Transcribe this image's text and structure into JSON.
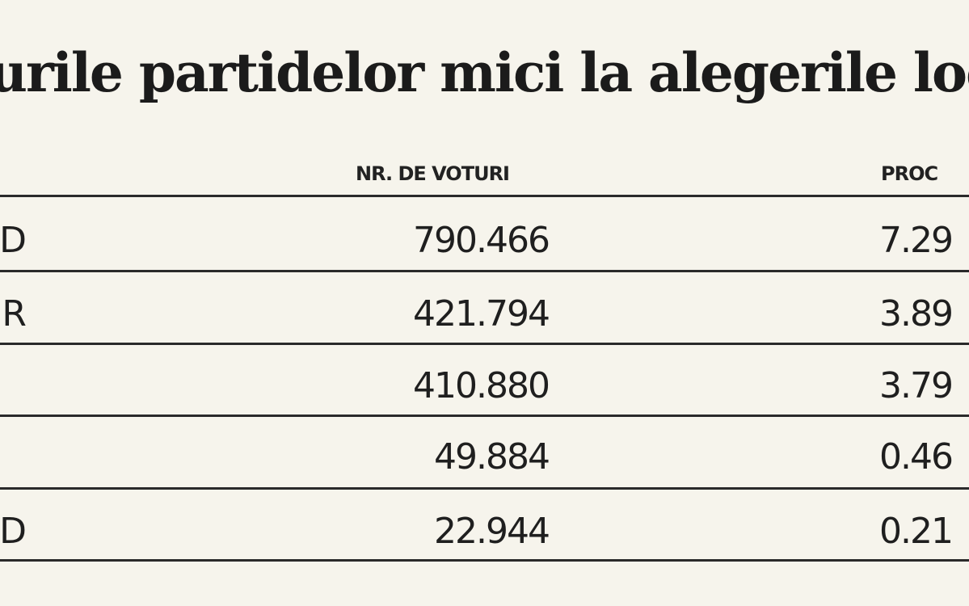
{
  "title": "urile partidelor mici la alegerile loc",
  "columns": {
    "party": "",
    "votes": "NR. DE VOTURI",
    "percent": "PROC"
  },
  "rows": [
    {
      "party": "D",
      "votes": "790.466",
      "percent": "7.29"
    },
    {
      "party": "R",
      "votes": "421.794",
      "percent": "3.89"
    },
    {
      "party": "",
      "votes": "410.880",
      "percent": "3.79"
    },
    {
      "party": "",
      "votes": "49.884",
      "percent": "0.46"
    },
    {
      "party": "D",
      "votes": "22.944",
      "percent": "0.21"
    }
  ]
}
